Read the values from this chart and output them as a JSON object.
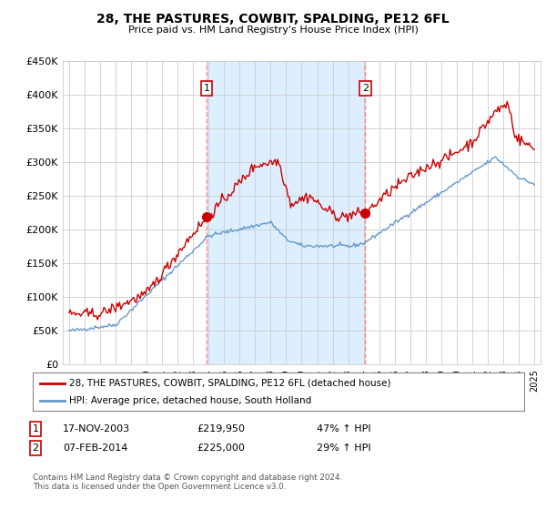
{
  "title": "28, THE PASTURES, COWBIT, SPALDING, PE12 6FL",
  "subtitle": "Price paid vs. HM Land Registry's House Price Index (HPI)",
  "legend_line1": "28, THE PASTURES, COWBIT, SPALDING, PE12 6FL (detached house)",
  "legend_line2": "HPI: Average price, detached house, South Holland",
  "footnote": "Contains HM Land Registry data © Crown copyright and database right 2024.\nThis data is licensed under the Open Government Licence v3.0.",
  "sale1_date": "17-NOV-2003",
  "sale1_price": "£219,950",
  "sale1_hpi": "47% ↑ HPI",
  "sale2_date": "07-FEB-2014",
  "sale2_price": "£225,000",
  "sale2_hpi": "29% ↑ HPI",
  "hpi_color": "#6699cc",
  "price_color": "#cc0000",
  "sale_marker_color": "#cc0000",
  "vline_color": "#ff8888",
  "shade_color": "#ddeeff",
  "chart_bg": "#ffffff",
  "grid_color": "#cccccc",
  "ylim": [
    0,
    450000
  ],
  "yticks": [
    0,
    50000,
    100000,
    150000,
    200000,
    250000,
    300000,
    350000,
    400000,
    450000
  ],
  "ytick_labels": [
    "£0",
    "£50K",
    "£100K",
    "£150K",
    "£200K",
    "£250K",
    "£300K",
    "£350K",
    "£400K",
    "£450K"
  ],
  "xlim_start": 1994.6,
  "xlim_end": 2025.4,
  "sale1_x": 2003.88,
  "sale1_y": 219950,
  "sale2_x": 2014.1,
  "sale2_y": 225000
}
